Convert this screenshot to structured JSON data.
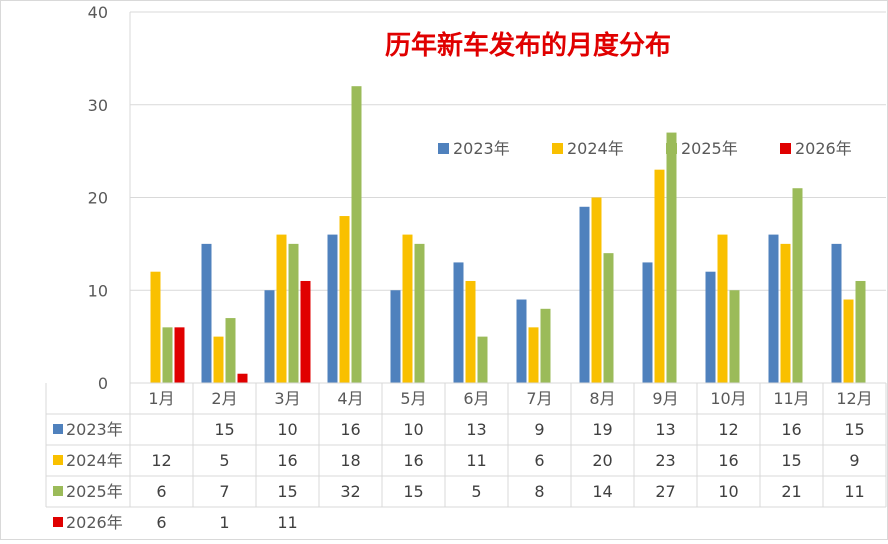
{
  "chart_data": {
    "type": "bar",
    "title": "历年新车发布的月度分布",
    "title_color": "#e00000",
    "categories": [
      "1月",
      "2月",
      "3月",
      "4月",
      "5月",
      "6月",
      "7月",
      "8月",
      "9月",
      "10月",
      "11月",
      "12月"
    ],
    "ylim": [
      0,
      40
    ],
    "yticks": [
      0,
      10,
      20,
      30,
      40
    ],
    "grid": true,
    "legend_position": "top-right",
    "series": [
      {
        "name": "2023年",
        "color": "#4f81bd",
        "values": [
          null,
          15,
          10,
          16,
          10,
          13,
          9,
          19,
          13,
          12,
          16,
          15
        ]
      },
      {
        "name": "2024年",
        "color": "#f9c000",
        "values": [
          12,
          5,
          16,
          18,
          16,
          11,
          6,
          20,
          23,
          16,
          15,
          9
        ]
      },
      {
        "name": "2025年",
        "color": "#9bbb59",
        "values": [
          6,
          7,
          15,
          32,
          15,
          5,
          8,
          14,
          27,
          10,
          21,
          11
        ]
      },
      {
        "name": "2026年",
        "color": "#e00000",
        "values": [
          6,
          1,
          11,
          null,
          null,
          null,
          null,
          null,
          null,
          null,
          null,
          null
        ]
      }
    ],
    "data_table": true
  }
}
